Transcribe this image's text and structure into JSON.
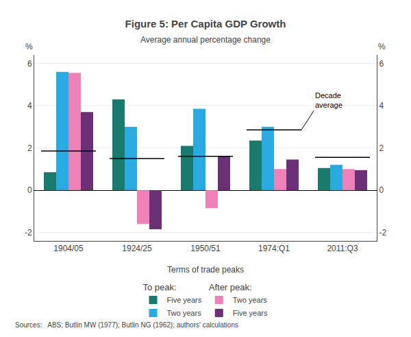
{
  "chart_data": {
    "type": "bar",
    "title": "Figure 5: Per Capita GDP Growth",
    "subtitle": "Average annual percentage change",
    "xlabel": "Terms of trade peaks",
    "ylabel": "%",
    "y2label": "%",
    "categories": [
      "1904/05",
      "1924/25",
      "1950/51",
      "1974:Q1",
      "2011:Q3"
    ],
    "series": [
      {
        "name": "Five years",
        "legend_group": "To peak:",
        "color": "#1a7a6e",
        "values": [
          0.85,
          4.3,
          2.1,
          2.35,
          1.05
        ]
      },
      {
        "name": "Two years",
        "legend_group": "To peak:",
        "color": "#29abe2",
        "values": [
          5.6,
          3.0,
          3.85,
          3.0,
          1.2
        ]
      },
      {
        "name": "Two years",
        "legend_group": "After peak:",
        "color": "#ee82b8",
        "values": [
          5.55,
          -1.6,
          -0.85,
          1.0,
          1.0
        ]
      },
      {
        "name": "Five years",
        "legend_group": "After peak:",
        "color": "#6b3075",
        "values": [
          3.7,
          -1.85,
          1.6,
          1.45,
          0.95
        ]
      }
    ],
    "decade_averages": [
      1.85,
      1.5,
      1.6,
      2.85,
      1.55
    ],
    "annotations": [
      {
        "text": "Decade\naverage",
        "category": "1974:Q1"
      }
    ],
    "ylim": [
      -2.4,
      6.4
    ],
    "yticks": [
      -2,
      0,
      2,
      4,
      6
    ],
    "y2lim": [
      -2.4,
      6.4
    ],
    "y2ticks": [
      -2,
      0,
      2,
      4,
      6
    ],
    "grid": true,
    "legend": "bottom",
    "sources": "Sources:   ABS; Butlin MW (1977); Butlin NG (1962); authors' calculations"
  }
}
